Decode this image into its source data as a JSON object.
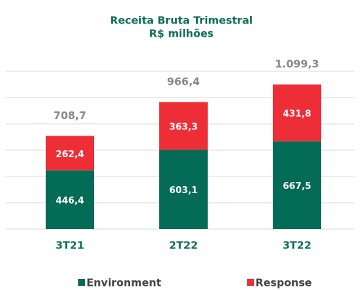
{
  "chart_data": {
    "type": "stacked_bar",
    "title": "Receita Bruta Trimestral",
    "subtitle": "R$ milhões",
    "categories": [
      "3T21",
      "2T22",
      "3T22"
    ],
    "series": [
      {
        "name": "Environment",
        "color": "#046b56",
        "values": [
          446.4,
          603.1,
          667.5
        ],
        "value_labels": [
          "446,4",
          "603,1",
          "667,5"
        ]
      },
      {
        "name": "Response",
        "color": "#ee2e37",
        "values": [
          262.4,
          363.3,
          431.8
        ],
        "value_labels": [
          "262,4",
          "363,3",
          "431,8"
        ]
      }
    ],
    "totals": [
      708.7,
      966.4,
      1099.3
    ],
    "total_labels": [
      "708,7",
      "966,4",
      "1.099,3"
    ],
    "ylim": [
      0,
      1200
    ],
    "yticks": [
      0,
      200,
      400,
      600,
      800,
      1000,
      1200
    ],
    "grid": true,
    "legend": "bottom"
  }
}
